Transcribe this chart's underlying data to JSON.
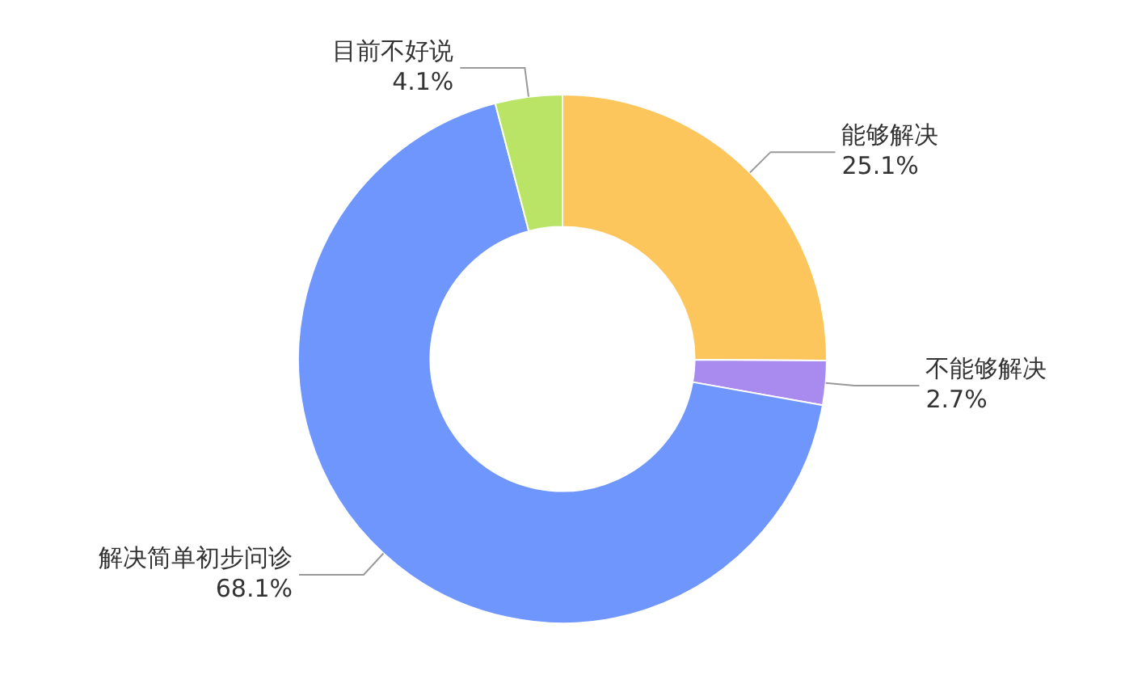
{
  "chart_data": {
    "type": "donut",
    "categories": [
      "能够解决",
      "不能够解决",
      "解决简单初步问诊",
      "目前不好说"
    ],
    "values": [
      25.1,
      2.7,
      68.1,
      4.1
    ],
    "colors": [
      "#fdc65c",
      "#a98bf0",
      "#6f96fc",
      "#b9e466"
    ],
    "value_labels": [
      "25.1%",
      "2.7%",
      "68.1%",
      "4.1%"
    ],
    "legend": false
  }
}
